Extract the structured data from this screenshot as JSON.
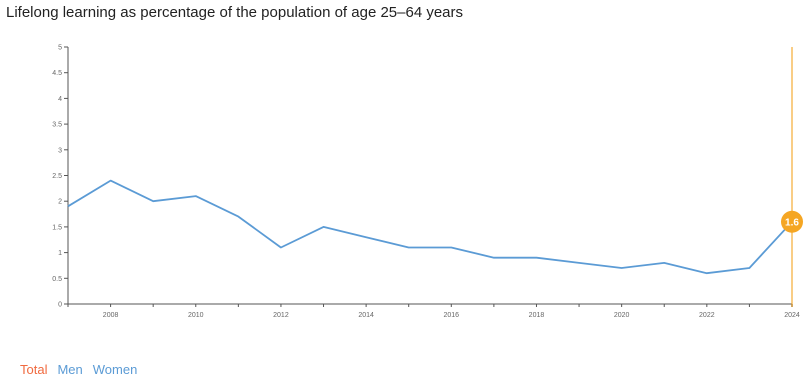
{
  "title": "Lifelong learning as percentage of the population of age 25–64 years",
  "legend": {
    "total": "Total",
    "men": "Men",
    "women": "Women"
  },
  "colors": {
    "line": "#5b9bd5",
    "highlight": "#f5a623",
    "total": "#f06a3f",
    "men": "#5b9bd5",
    "women": "#5b9bd5",
    "axis": "#555555"
  },
  "chart_data": {
    "type": "line",
    "title": "Lifelong learning as percentage of the population of age 25–64 years",
    "xlabel": "",
    "ylabel": "",
    "x": [
      2007,
      2008,
      2009,
      2010,
      2011,
      2012,
      2013,
      2014,
      2015,
      2016,
      2017,
      2018,
      2019,
      2020,
      2021,
      2022,
      2023,
      2024
    ],
    "series": [
      {
        "values": [
          1.9,
          2.4,
          2.0,
          2.1,
          1.7,
          1.1,
          1.5,
          1.3,
          1.1,
          1.1,
          0.9,
          0.9,
          0.8,
          0.7,
          0.8,
          0.6,
          0.7,
          1.6
        ]
      }
    ],
    "xlim": [
      2007,
      2024
    ],
    "ylim": [
      0,
      5
    ],
    "yticks": [
      "0",
      "0.5",
      "1",
      "1.5",
      "2",
      "2.5",
      "3",
      "3.5",
      "4",
      "4.5",
      "5"
    ],
    "xticks": [
      "2008",
      "2010",
      "2012",
      "2014",
      "2016",
      "2018",
      "2020",
      "2022",
      "2024"
    ],
    "highlight": {
      "x": 2024,
      "label": "1.6"
    },
    "grid": false,
    "legend_position": "bottom-left"
  }
}
